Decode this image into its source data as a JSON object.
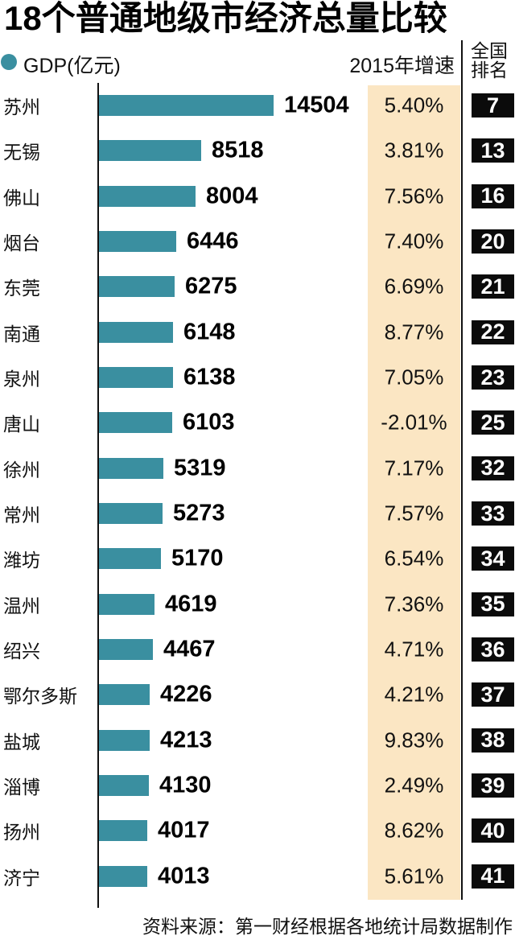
{
  "page": {
    "title": "18个普通地级市经济总量比较",
    "source_note": "资料来源：第一财经根据各地统计局数据制作"
  },
  "header": {
    "legend_label": "GDP(亿元)",
    "growth_header": "2015年增速",
    "rank_header_line1": "全国",
    "rank_header_line2": "排名"
  },
  "colors": {
    "bar": "#3A8FA0",
    "growth_band_bg": "#FBE6C3",
    "rank_badge_bg": "#0B0B0B",
    "rank_badge_text": "#FFFFFF",
    "text": "#111111"
  },
  "chart_data": {
    "type": "bar",
    "orientation": "horizontal",
    "title": "18个普通地级市经济总量比较",
    "legend": "GDP(亿元)",
    "value_unit": "亿元",
    "growth_column_label": "2015年增速",
    "rank_column_label": "全国排名",
    "x_range": [
      0,
      14504
    ],
    "grid": false,
    "rows": [
      {
        "city": "苏州",
        "gdp": 14504,
        "growth": "5.40%",
        "rank": 7
      },
      {
        "city": "无锡",
        "gdp": 8518,
        "growth": "3.81%",
        "rank": 13
      },
      {
        "city": "佛山",
        "gdp": 8004,
        "growth": "7.56%",
        "rank": 16
      },
      {
        "city": "烟台",
        "gdp": 6446,
        "growth": "7.40%",
        "rank": 20
      },
      {
        "city": "东莞",
        "gdp": 6275,
        "growth": "6.69%",
        "rank": 21
      },
      {
        "city": "南通",
        "gdp": 6148,
        "growth": "8.77%",
        "rank": 22
      },
      {
        "city": "泉州",
        "gdp": 6138,
        "growth": "7.05%",
        "rank": 23
      },
      {
        "city": "唐山",
        "gdp": 6103,
        "growth": "-2.01%",
        "rank": 25
      },
      {
        "city": "徐州",
        "gdp": 5319,
        "growth": "7.17%",
        "rank": 32
      },
      {
        "city": "常州",
        "gdp": 5273,
        "growth": "7.57%",
        "rank": 33
      },
      {
        "city": "潍坊",
        "gdp": 5170,
        "growth": "6.54%",
        "rank": 34
      },
      {
        "city": "温州",
        "gdp": 4619,
        "growth": "7.36%",
        "rank": 35
      },
      {
        "city": "绍兴",
        "gdp": 4467,
        "growth": "4.71%",
        "rank": 36
      },
      {
        "city": "鄂尔多斯",
        "gdp": 4226,
        "growth": "4.21%",
        "rank": 37
      },
      {
        "city": "盐城",
        "gdp": 4213,
        "growth": "9.83%",
        "rank": 38
      },
      {
        "city": "淄博",
        "gdp": 4130,
        "growth": "2.49%",
        "rank": 39
      },
      {
        "city": "扬州",
        "gdp": 4017,
        "growth": "8.62%",
        "rank": 40
      },
      {
        "city": "济宁",
        "gdp": 4013,
        "growth": "5.61%",
        "rank": 41
      }
    ]
  }
}
